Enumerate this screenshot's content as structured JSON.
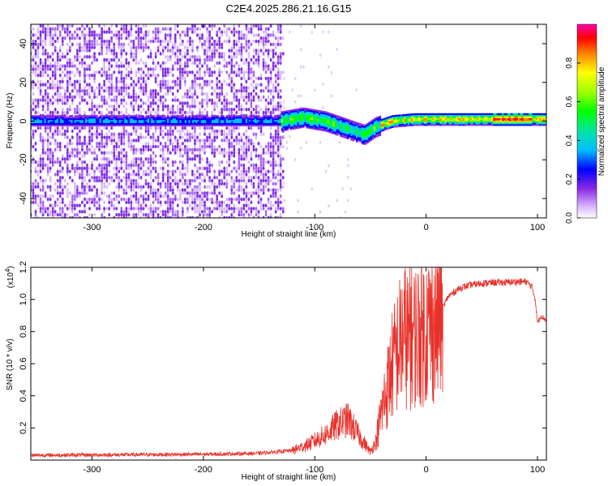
{
  "title": "C2E4.2025.286.21.16.G15",
  "chart_data": [
    {
      "type": "heatmap",
      "xlabel": "Height of straight line (km)",
      "ylabel": "Frequency (Hz)",
      "xlim": [
        -355,
        108
      ],
      "ylim": [
        -50,
        50
      ],
      "xticks": [
        -300,
        -200,
        -100,
        0,
        100
      ],
      "yticks": [
        -40,
        -20,
        0,
        20,
        40
      ],
      "colorbar": {
        "label": "Normalized spectral amplitude",
        "range": [
          0,
          1
        ],
        "ticks": [
          0.0,
          0.2,
          0.4,
          0.6,
          0.8
        ]
      },
      "ridge": [
        {
          "x": -355,
          "y": 0
        },
        {
          "x": -130,
          "y": 0
        },
        {
          "x": -110,
          "y": 2
        },
        {
          "x": -90,
          "y": 0
        },
        {
          "x": -70,
          "y": -4
        },
        {
          "x": -55,
          "y": -7
        },
        {
          "x": -45,
          "y": -3
        },
        {
          "x": -30,
          "y": 0
        },
        {
          "x": -10,
          "y": 1
        },
        {
          "x": 0,
          "y": 1
        },
        {
          "x": 50,
          "y": 1
        },
        {
          "x": 108,
          "y": 1
        }
      ],
      "colors": {
        "noise": "#7a2ce0",
        "ridge_peak": "#e00000"
      }
    },
    {
      "type": "line",
      "xlabel": "Height of straight line (km)",
      "ylabel": "SNR (10 * v/v)",
      "y_multiplier": "(x10",
      "y_multiplier_exp": "4",
      "xlim": [
        -355,
        108
      ],
      "ylim": [
        0,
        12000
      ],
      "xticks": [
        -300,
        -200,
        -100,
        0,
        100
      ],
      "yticks": [
        2000,
        4000,
        6000,
        8000,
        10000,
        12000
      ],
      "ytick_labels": [
        "0.2",
        "0.4",
        "0.6",
        "0.8",
        "1.0",
        "1.2"
      ],
      "series": [
        {
          "color": "#e8312a",
          "x": [
            -355,
            -300,
            -250,
            -200,
            -150,
            -120,
            -105,
            -90,
            -80,
            -70,
            -60,
            -50,
            -45,
            -40,
            -35,
            -30,
            -25,
            -20,
            -15,
            -10,
            -5,
            0,
            5,
            10,
            15,
            20,
            30,
            40,
            50,
            60,
            70,
            80,
            90,
            95,
            98,
            100,
            103,
            108
          ],
          "y": [
            300,
            320,
            340,
            360,
            420,
            600,
            1000,
            1600,
            2200,
            2500,
            1500,
            500,
            1200,
            3000,
            4500,
            6000,
            7000,
            7800,
            7500,
            7800,
            8000,
            8200,
            8300,
            8500,
            9500,
            10200,
            10700,
            10900,
            11000,
            11050,
            11050,
            11100,
            11100,
            10800,
            10000,
            8500,
            9000,
            8700
          ]
        }
      ]
    }
  ]
}
